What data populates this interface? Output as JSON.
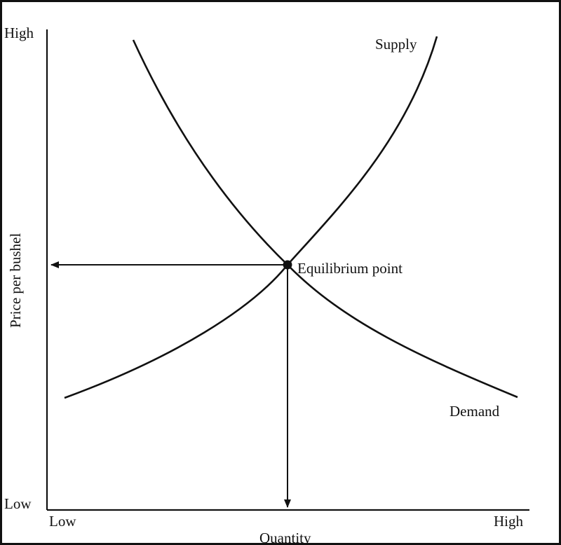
{
  "diagram": {
    "y_axis": {
      "label": "Price per bushel",
      "high_label": "High",
      "low_label": "Low"
    },
    "x_axis": {
      "label": "Quantity",
      "low_label": "Low",
      "high_label": "High"
    },
    "curves": {
      "supply_label": "Supply",
      "demand_label": "Demand"
    },
    "equilibrium_label": "Equilibrium point",
    "colors": {
      "ink": "#111111",
      "background": "#ffffff"
    }
  }
}
